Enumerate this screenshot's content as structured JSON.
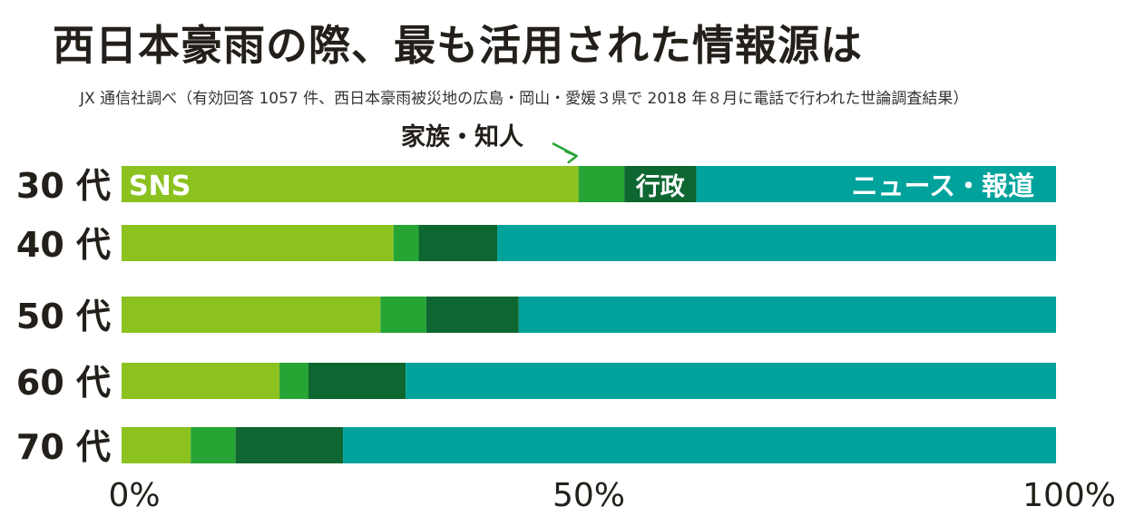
{
  "page": {
    "title": "西日本豪雨の際、最も活用された情報源は",
    "subtitle": "JX 通信社調べ（有効回答 1057 件、西日本豪雨被災地の広島・岡山・愛媛３県で 2018 年８月に電話で行われた世論調査結果）"
  },
  "chart_data": {
    "type": "bar",
    "orientation": "horizontal",
    "stacked": true,
    "title": "西日本豪雨の際、最も活用された情報源は",
    "categories": [
      "30 代",
      "40 代",
      "50 代",
      "60 代",
      "70 代"
    ],
    "series": [
      {
        "name": "SNS",
        "color": "#8cc21f",
        "values": [
          48.9,
          29.1,
          27.7,
          16.9,
          7.4
        ]
      },
      {
        "name": "家族・知人",
        "color": "#26a535",
        "values": [
          4.9,
          2.7,
          4.9,
          3.1,
          4.8
        ]
      },
      {
        "name": "行政",
        "color": "#0e6630",
        "values": [
          7.7,
          8.4,
          9.9,
          10.4,
          11.5
        ]
      },
      {
        "name": "ニュース・報道",
        "color": "#00a39c",
        "values": [
          38.5,
          59.8,
          57.5,
          69.6,
          76.3
        ]
      }
    ],
    "xlim": [
      0,
      100
    ],
    "xticks": [
      "0%",
      "50%",
      "100%"
    ],
    "legend": "inline labels on first bar"
  }
}
